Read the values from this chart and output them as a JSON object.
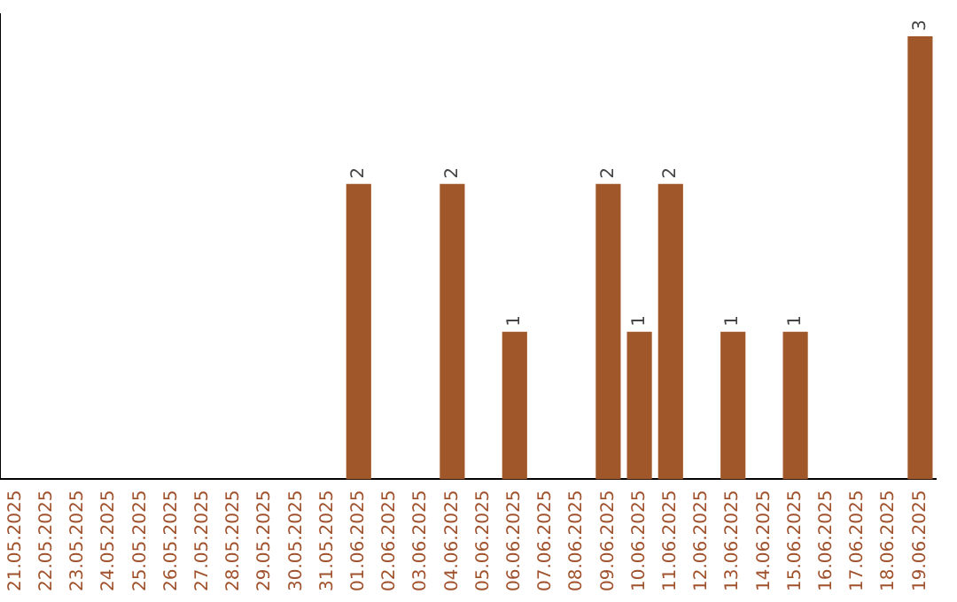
{
  "chart_data": {
    "type": "bar",
    "categories": [
      "21.05.2025",
      "22.05.2025",
      "23.05.2025",
      "24.05.2025",
      "25.05.2025",
      "26.05.2025",
      "27.05.2025",
      "28.05.2025",
      "29.05.2025",
      "30.05.2025",
      "31.05.2025",
      "01.06.2025",
      "02.06.2025",
      "03.06.2025",
      "04.06.2025",
      "05.06.2025",
      "06.06.2025",
      "07.06.2025",
      "08.06.2025",
      "09.06.2025",
      "10.06.2025",
      "11.06.2025",
      "12.06.2025",
      "13.06.2025",
      "14.06.2025",
      "15.06.2025",
      "16.06.2025",
      "17.06.2025",
      "18.06.2025",
      "19.06.2025"
    ],
    "values": [
      0,
      0,
      0,
      0,
      0,
      0,
      0,
      0,
      0,
      0,
      0,
      2,
      0,
      0,
      2,
      0,
      1,
      0,
      0,
      2,
      1,
      2,
      0,
      1,
      0,
      1,
      0,
      0,
      0,
      3
    ],
    "value_labels": [
      null,
      null,
      null,
      null,
      null,
      null,
      null,
      null,
      null,
      null,
      null,
      "2",
      null,
      null,
      "2",
      null,
      "1",
      null,
      null,
      "2",
      "1",
      "2",
      null,
      "1",
      null,
      "1",
      null,
      null,
      null,
      "3"
    ],
    "color": "#a0582a",
    "ylim": [
      0,
      3.15
    ],
    "tick_labels": "x",
    "grid": false,
    "legend": false
  }
}
